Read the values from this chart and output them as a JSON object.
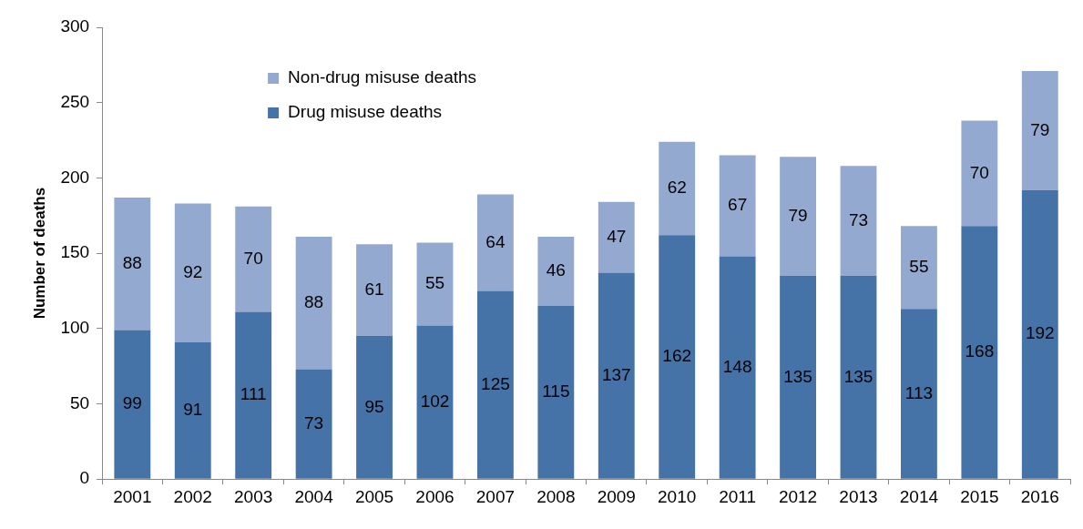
{
  "chart_data": {
    "type": "bar",
    "ylabel": "Number of deaths",
    "categories": [
      "2001",
      "2002",
      "2003",
      "2004",
      "2005",
      "2006",
      "2007",
      "2008",
      "2009",
      "2010",
      "2011",
      "2012",
      "2013",
      "2014",
      "2015",
      "2016"
    ],
    "series": [
      {
        "name": "Drug misuse deaths",
        "color": "#4572a7",
        "values": [
          99,
          91,
          111,
          73,
          95,
          102,
          125,
          115,
          137,
          162,
          148,
          135,
          135,
          113,
          168,
          192
        ]
      },
      {
        "name": "Non-drug misuse deaths",
        "color": "#93a9d0",
        "values": [
          88,
          92,
          70,
          88,
          61,
          55,
          64,
          46,
          47,
          62,
          67,
          79,
          73,
          55,
          70,
          79
        ]
      }
    ],
    "stacked": true,
    "ylim": [
      0,
      300
    ],
    "yticks": [
      0,
      50,
      100,
      150,
      200,
      250,
      300
    ],
    "grid": false,
    "legend": "top left",
    "data_labels": true
  }
}
